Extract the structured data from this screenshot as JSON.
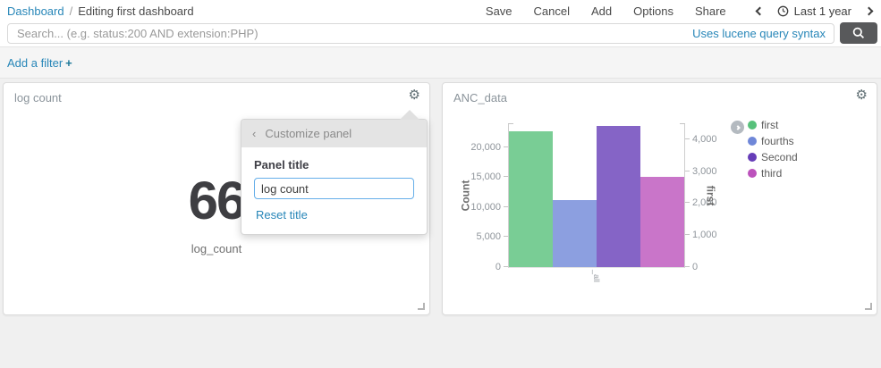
{
  "breadcrumb": {
    "root": "Dashboard",
    "separator": "/",
    "current": "Editing first dashboard"
  },
  "nav_actions": {
    "save": "Save",
    "cancel": "Cancel",
    "add": "Add",
    "options": "Options",
    "share": "Share"
  },
  "time_picker": {
    "label": "Last 1 year"
  },
  "search": {
    "placeholder": "Search... (e.g. status:200 AND extension:PHP)",
    "syntax_hint": "Uses lucene query syntax"
  },
  "filter_bar": {
    "label": "Add a filter",
    "plus": "+"
  },
  "metric_panel": {
    "title": "log count",
    "value": "66",
    "metric_label": "log_count"
  },
  "chart_panel": {
    "title": "ANC_data"
  },
  "customize_popup": {
    "back": "‹",
    "header": "Customize panel",
    "field_label": "Panel title",
    "input_value": "log count",
    "reset_link": "Reset title"
  },
  "chart_data": {
    "type": "bar",
    "title": "ANC_data",
    "categories": [
      "_all"
    ],
    "xlabel": "_all",
    "grid": false,
    "legend_position": "right",
    "series": [
      {
        "name": "first",
        "value": 4260,
        "axis": "right",
        "color": "#57c17b"
      },
      {
        "name": "fourths",
        "value": 11200,
        "axis": "left",
        "color": "#6f87d8"
      },
      {
        "name": "Second",
        "value": 23600,
        "axis": "left",
        "color": "#663db8"
      },
      {
        "name": "third",
        "value": 15000,
        "axis": "left",
        "color": "#bc52bc"
      }
    ],
    "left_axis": {
      "title": "Count",
      "ylim": [
        0,
        23850
      ],
      "ticks": [
        0,
        5000,
        10000,
        15000,
        20000
      ],
      "tick_labels": [
        "0",
        "5,000",
        "10,000",
        "15,000",
        "20,000"
      ]
    },
    "right_axis": {
      "title": "first",
      "ylim": [
        0,
        4470
      ],
      "ticks": [
        0,
        1000,
        2000,
        3000,
        4000
      ],
      "tick_labels": [
        "0",
        "1,000",
        "2,000",
        "3,000",
        "4,000"
      ]
    }
  },
  "colors": {
    "accent_link": "#2786b8",
    "search_button_bg": "#58595b",
    "popup_header_bg": "#e4e4e4",
    "input_focus_border": "#66afe9"
  }
}
